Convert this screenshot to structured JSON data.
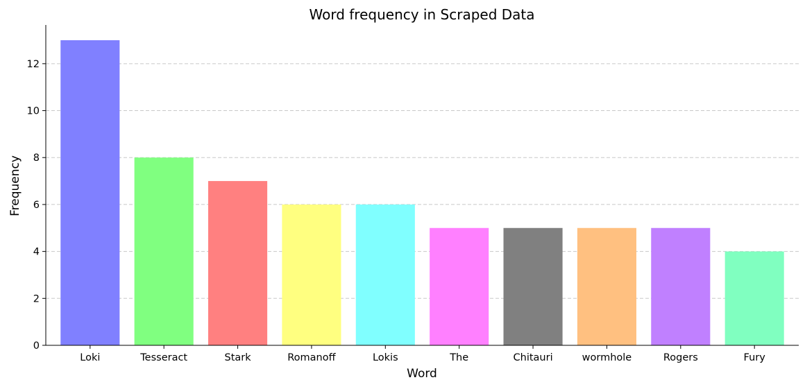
{
  "chart_data": {
    "type": "bar",
    "title": "Word frequency in Scraped Data",
    "xlabel": "Word",
    "ylabel": "Frequency",
    "categories": [
      "Loki",
      "Tesseract",
      "Stark",
      "Romanoff",
      "Lokis",
      "The",
      "Chitauri",
      "wormhole",
      "Rogers",
      "Fury"
    ],
    "values": [
      13,
      8,
      7,
      6,
      6,
      5,
      5,
      5,
      5,
      4
    ],
    "colors": [
      "#8080ff",
      "#80ff80",
      "#ff8080",
      "#ffff80",
      "#80ffff",
      "#ff80ff",
      "#808080",
      "#ffc080",
      "#c080ff",
      "#80ffc0"
    ],
    "ylim": [
      0,
      13.65
    ],
    "yticks": [
      0,
      2,
      4,
      6,
      8,
      10,
      12
    ],
    "grid": "y-dashed",
    "legend": "none"
  }
}
